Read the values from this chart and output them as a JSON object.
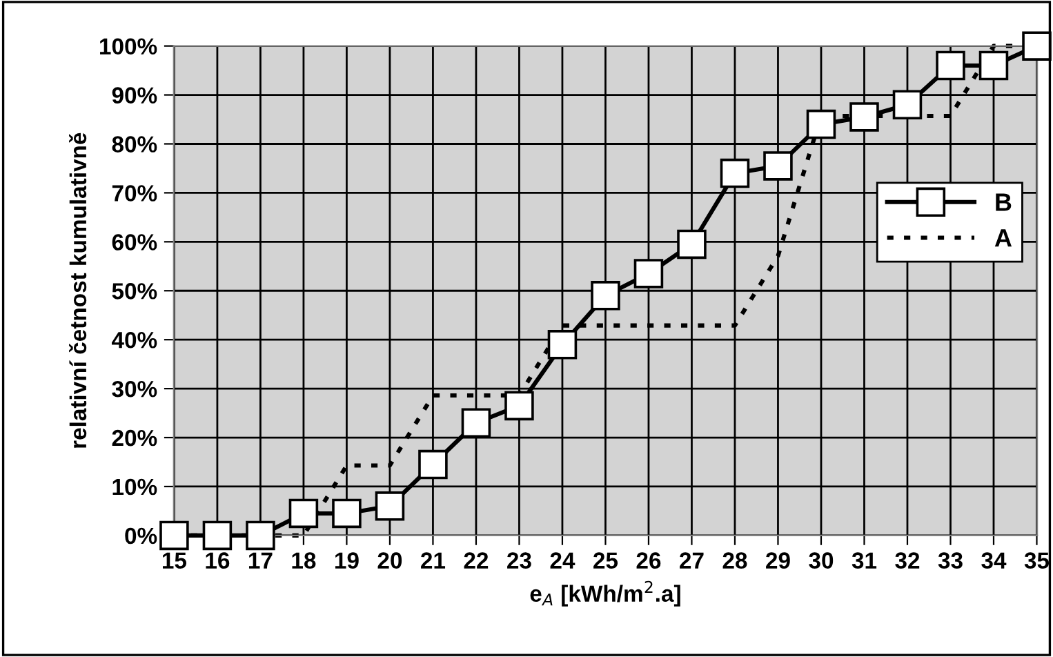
{
  "chart_data": {
    "type": "line",
    "xlabel": "e$_{A}$ [kWh/m$^{2}$.a]",
    "ylabel": "relativní četnost kumulativně",
    "categories": [
      "15",
      "16",
      "17",
      "18",
      "19",
      "20",
      "21",
      "22",
      "23",
      "24",
      "25",
      "26",
      "27",
      "28",
      "29",
      "30",
      "31",
      "32",
      "33",
      "34",
      "35"
    ],
    "series": [
      {
        "name": "B",
        "color": "#000000",
        "marker": "square",
        "line_style": "solid",
        "values": [
          0,
          0,
          0,
          4.5,
          4.5,
          6,
          14.5,
          23,
          26.5,
          39,
          49,
          53.5,
          59.5,
          74,
          75.5,
          84,
          85.5,
          88,
          96,
          96,
          100
        ]
      },
      {
        "name": "A",
        "color": "#000000",
        "marker": "none",
        "line_style": "dotted",
        "values": [
          0,
          0,
          0,
          0,
          14.3,
          14.3,
          28.6,
          28.6,
          28.6,
          42.9,
          42.9,
          42.9,
          42.9,
          42.9,
          57.1,
          85.7,
          85.7,
          85.7,
          85.7,
          100,
          100
        ]
      }
    ],
    "ylim": [
      0,
      100
    ],
    "yticks": [
      {
        "value": 0,
        "label": "0%"
      },
      {
        "value": 10,
        "label": "10%"
      },
      {
        "value": 20,
        "label": "20%"
      },
      {
        "value": 30,
        "label": "30%"
      },
      {
        "value": 40,
        "label": "40%"
      },
      {
        "value": 50,
        "label": "50%"
      },
      {
        "value": 60,
        "label": "60%"
      },
      {
        "value": 70,
        "label": "70%"
      },
      {
        "value": 80,
        "label": "80%"
      },
      {
        "value": 90,
        "label": "90%"
      },
      {
        "value": 100,
        "label": "100%"
      }
    ],
    "grid": true,
    "legend": "right"
  }
}
